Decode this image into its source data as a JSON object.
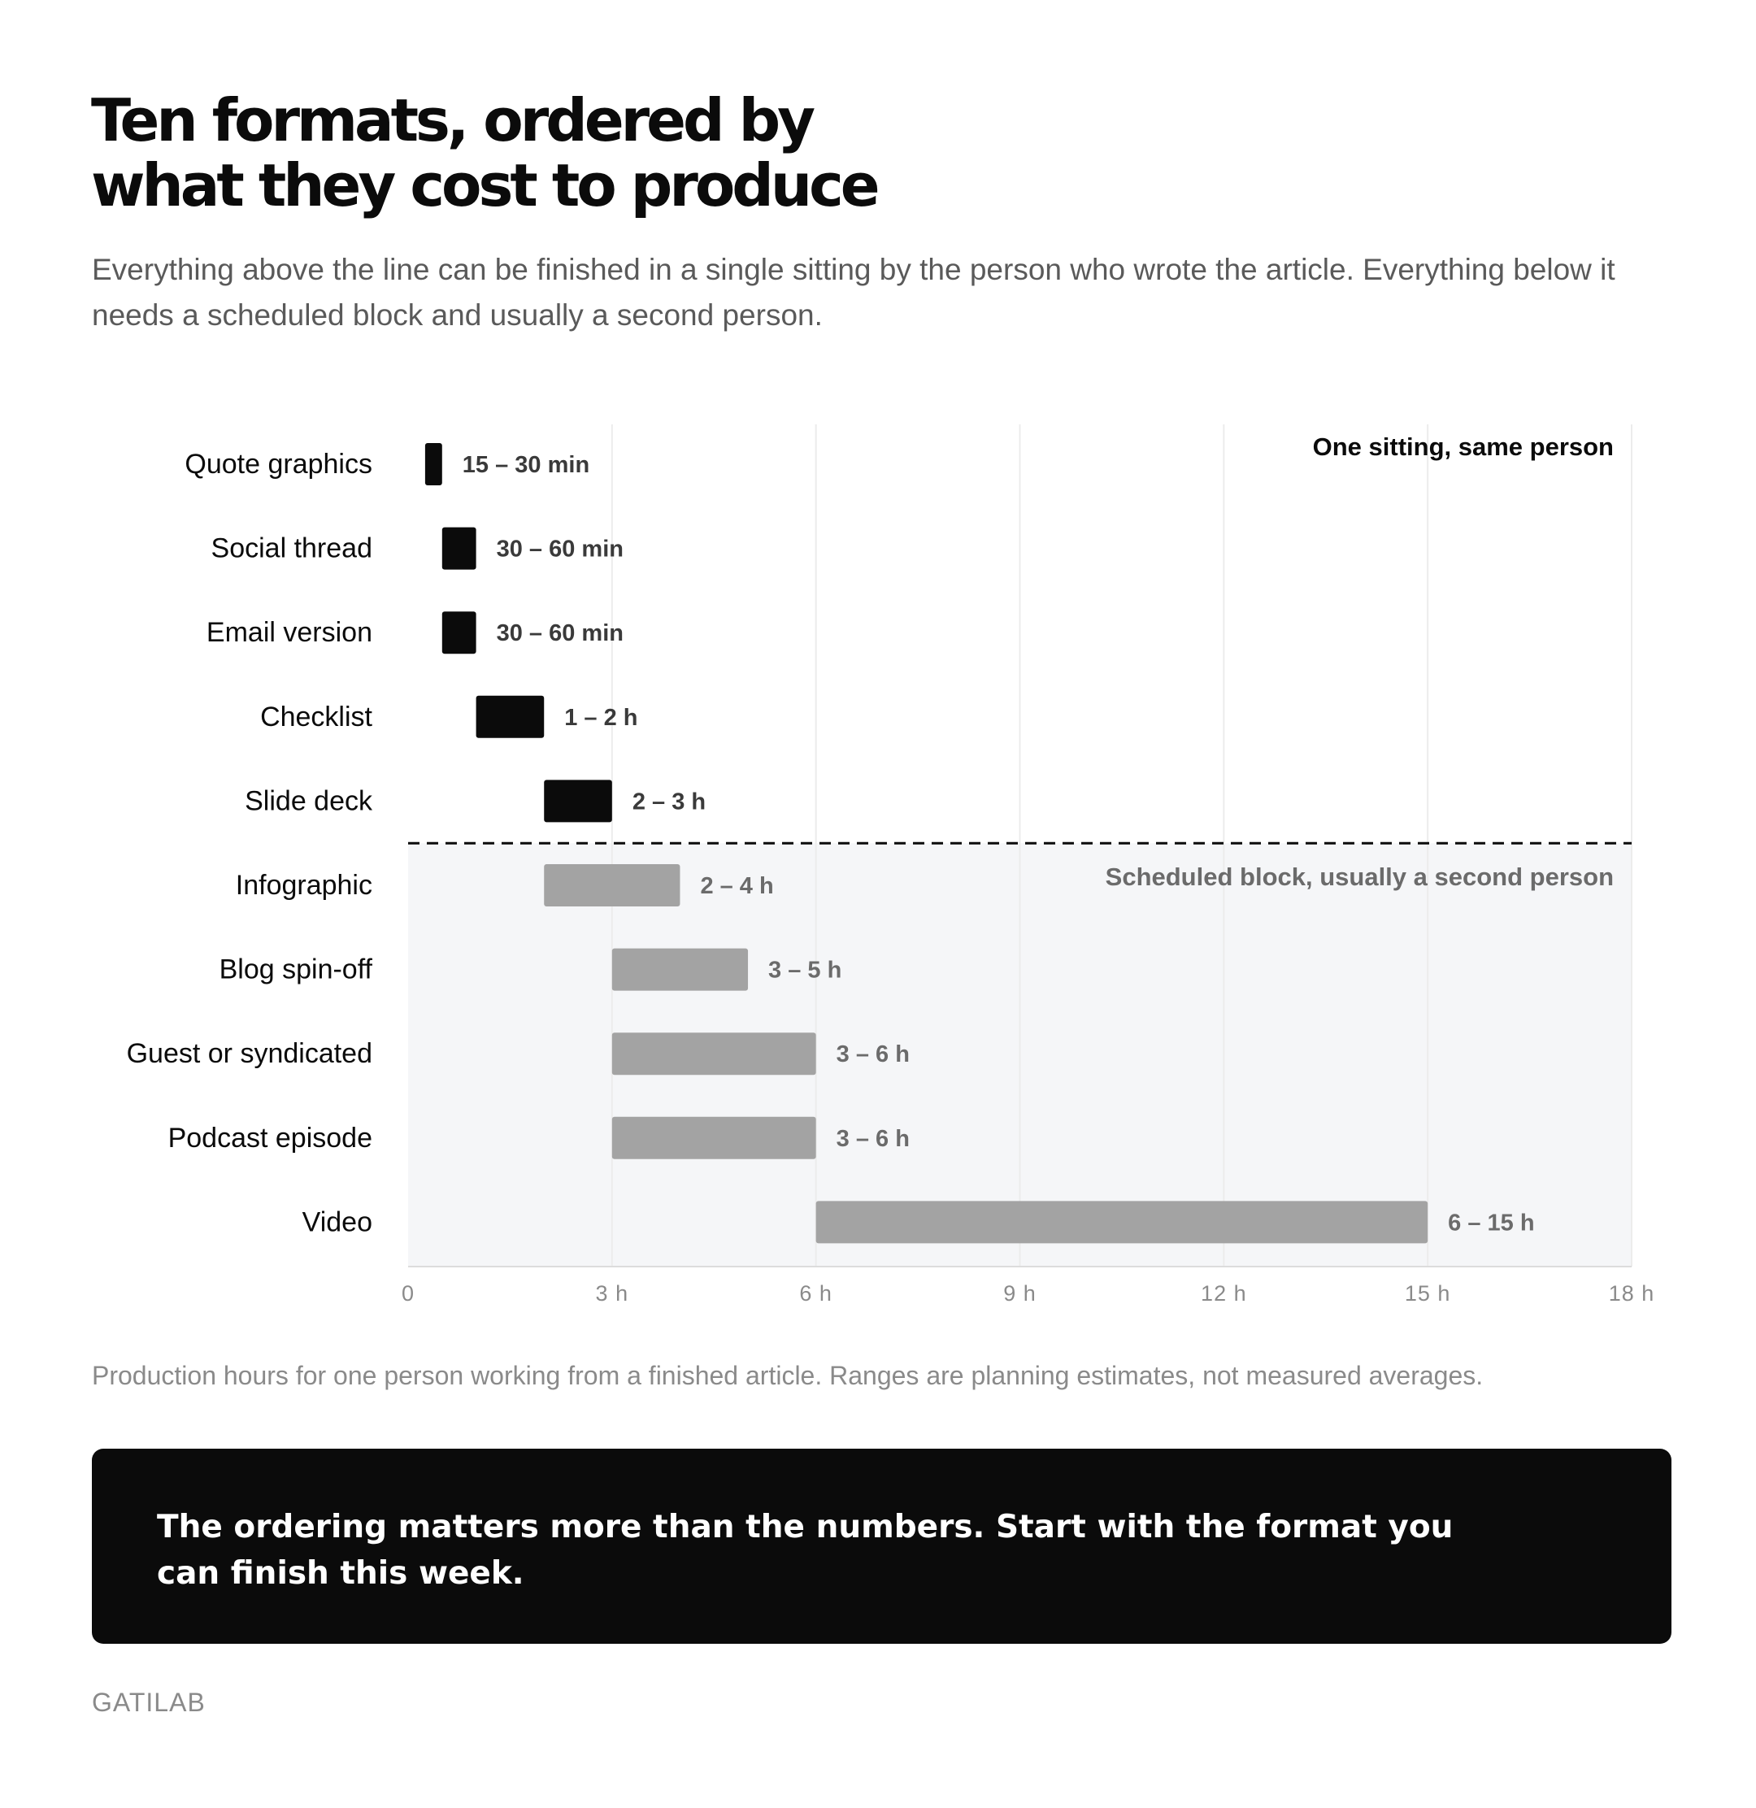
{
  "title_line1": "Ten formats, ordered by",
  "title_line2": "what they cost to produce",
  "subtitle": "Everything above the line can be finished in a single sitting by the person who wrote the article. Everything below it needs a scheduled block and usually a second person.",
  "chart_data": {
    "type": "bar",
    "orientation": "horizontal",
    "range_bars": true,
    "xlabel": "",
    "ylabel": "",
    "xlim": [
      0,
      18
    ],
    "xticks": [
      0,
      3,
      6,
      9,
      12,
      15,
      18
    ],
    "xtick_labels": [
      "0",
      "3 h",
      "6 h",
      "9 h",
      "12 h",
      "15 h",
      "18 h"
    ],
    "grid": "vertical",
    "categories": [
      "Quote graphics",
      "Social thread",
      "Email version",
      "Checklist",
      "Slide deck",
      "Infographic",
      "Blog spin-off",
      "Guest or syndicated",
      "Podcast episode",
      "Video"
    ],
    "ranges": [
      [
        0.25,
        0.5
      ],
      [
        0.5,
        1
      ],
      [
        0.5,
        1
      ],
      [
        1,
        2
      ],
      [
        2,
        3
      ],
      [
        2,
        4
      ],
      [
        3,
        5
      ],
      [
        3,
        6
      ],
      [
        3,
        6
      ],
      [
        6,
        15
      ]
    ],
    "range_labels": [
      "15 – 30 min",
      "30 – 60 min",
      "30 – 60 min",
      "1 – 2 h",
      "2 – 3 h",
      "2 – 4 h",
      "3 – 5 h",
      "3 – 6 h",
      "3 – 6 h",
      "6 – 15 h"
    ],
    "group_split_after_index": 4,
    "group_labels": [
      "One sitting, same person",
      "Scheduled block, usually a second person"
    ],
    "colors": {
      "one_sitting": "#0b0b0b",
      "scheduled": "#a3a3a3",
      "scheduled_band": "#f5f6f8"
    }
  },
  "note": "Production hours for one person working from a finished article. Ranges are planning estimates, not measured averages.",
  "callout": "The ordering matters more than the numbers. Start with the format you can finish this week.",
  "brand": "GATILAB"
}
